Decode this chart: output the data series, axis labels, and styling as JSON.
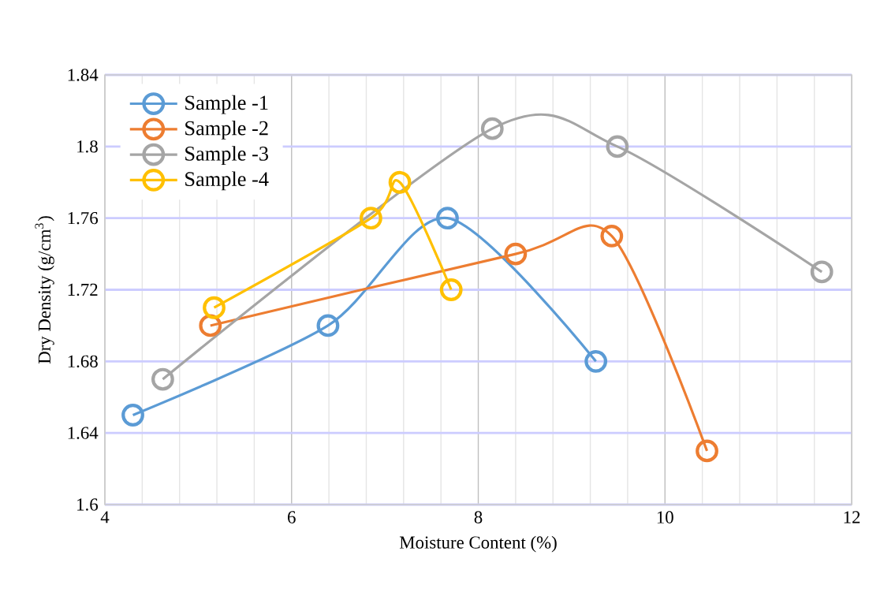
{
  "chart_data": {
    "type": "line",
    "xlabel": "Moisture Content (%)",
    "ylabel": "Dry Density (g/cm$^{3}$)",
    "xlim": [
      4,
      12
    ],
    "xticks": [
      4,
      6,
      8,
      10,
      12
    ],
    "ylim": [
      1.6,
      1.84
    ],
    "yticks": [
      1.6,
      1.64,
      1.68,
      1.72,
      1.76,
      1.8,
      1.84
    ],
    "grid": true,
    "legend": "top left",
    "marker": "circle",
    "series": [
      {
        "name": "Sample -1",
        "color": "#5b9bd5",
        "x": [
          4.3,
          6.39,
          7.67,
          9.26
        ],
        "values": [
          1.65,
          1.7,
          1.76,
          1.68
        ]
      },
      {
        "name": "Sample -2",
        "color": "#ed7d31",
        "x": [
          5.13,
          8.4,
          9.43,
          10.45
        ],
        "values": [
          1.7,
          1.74,
          1.75,
          1.63
        ]
      },
      {
        "name": "Sample -3",
        "color": "#a5a5a5",
        "x": [
          4.62,
          8.15,
          9.49,
          11.68
        ],
        "values": [
          1.67,
          1.81,
          1.8,
          1.73
        ]
      },
      {
        "name": "Sample -4",
        "color": "#ffc000",
        "x": [
          5.17,
          6.85,
          7.16,
          7.71
        ],
        "values": [
          1.71,
          1.76,
          1.78,
          1.72
        ]
      }
    ]
  }
}
